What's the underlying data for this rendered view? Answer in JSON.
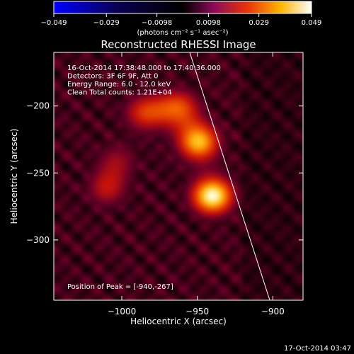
{
  "chart_data": {
    "type": "heatmap",
    "title": "Reconstructed RHESSI Image",
    "xlabel": "Heliocentric X (arcsec)",
    "ylabel": "Heliocentric Y (arcsec)",
    "xlim": [
      -1045,
      -880
    ],
    "ylim": [
      -345,
      -160
    ],
    "x_ticks": [
      -1000,
      -950,
      -900
    ],
    "x_tick_labels": [
      "−1000",
      "−950",
      "−900"
    ],
    "y_ticks": [
      -200,
      -250,
      -300
    ],
    "y_tick_labels": [
      "−200",
      "−250",
      "−300"
    ],
    "colorbar": {
      "range": [
        -0.049,
        0.049
      ],
      "ticks": [
        -0.049,
        -0.029,
        -0.0098,
        0.0098,
        0.029,
        0.049
      ],
      "tick_labels": [
        "−0.049",
        "−0.029",
        "−0.0098",
        "0.0098",
        "0.029",
        "0.049"
      ],
      "label": "(photons cm⁻² s⁻¹ asec⁻²)"
    },
    "info_lines": [
      "16-Oct-2014 17:38:48.000 to 17:40:36.000",
      "Detectors: 3F 6F 9F, Att 0",
      "Energy Range: 6.0 - 12.0 keV",
      "Clean     Total counts: 1.21E+04"
    ],
    "peak_text": "Position of Peak = [-940,-267]",
    "peak": [
      -940,
      -267
    ],
    "limb_line": [
      [
        -955,
        -160
      ],
      [
        -902,
        -345
      ]
    ],
    "sources": [
      {
        "x": -940,
        "y": -267,
        "amp": 1.0
      },
      {
        "x": -949,
        "y": -227,
        "amp": 0.85
      },
      {
        "x": -962,
        "y": -201,
        "amp": 0.6
      },
      {
        "x": -985,
        "y": -205,
        "amp": 0.55
      },
      {
        "x": -1010,
        "y": -262,
        "amp": 0.45
      },
      {
        "x": -1003,
        "y": -240,
        "amp": 0.35
      }
    ]
  },
  "footer_date": "17-Oct-2014 03:47",
  "colors": {
    "background": "#000000",
    "text": "#ffffff"
  }
}
